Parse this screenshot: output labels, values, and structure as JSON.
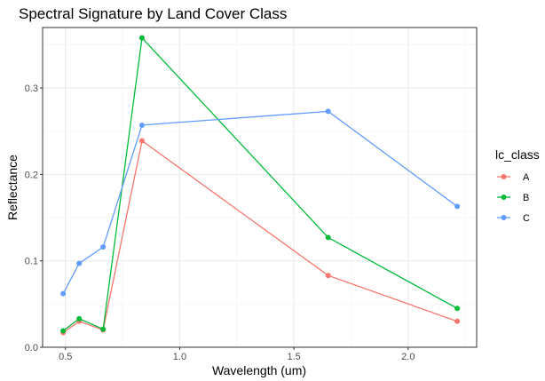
{
  "chart_data": {
    "type": "line",
    "title": "Spectral Signature by Land Cover Class",
    "xlabel": "Wavelength (um)",
    "ylabel": "Reflectance",
    "xlim": [
      0.4,
      2.3
    ],
    "ylim": [
      0.0,
      0.37
    ],
    "x_ticks": [
      0.5,
      1.0,
      1.5,
      2.0
    ],
    "x_tick_labels": [
      "0.5",
      "1.0",
      "1.5",
      "2.0"
    ],
    "y_ticks": [
      0.0,
      0.1,
      0.2,
      0.3
    ],
    "y_tick_labels": [
      "0.0",
      "0.1",
      "0.2",
      "0.3"
    ],
    "grid": true,
    "legend": {
      "title": "lc_class",
      "position": "right"
    },
    "x": [
      0.49,
      0.56,
      0.665,
      0.835,
      1.65,
      2.215
    ],
    "series": [
      {
        "name": "A",
        "color": "#F8766D",
        "values": [
          0.017,
          0.03,
          0.02,
          0.239,
          0.083,
          0.03
        ]
      },
      {
        "name": "B",
        "color": "#00BA38",
        "values": [
          0.019,
          0.033,
          0.021,
          0.358,
          0.127,
          0.045
        ]
      },
      {
        "name": "C",
        "color": "#619CFF",
        "values": [
          0.062,
          0.097,
          0.116,
          0.257,
          0.273,
          0.163
        ]
      }
    ]
  }
}
